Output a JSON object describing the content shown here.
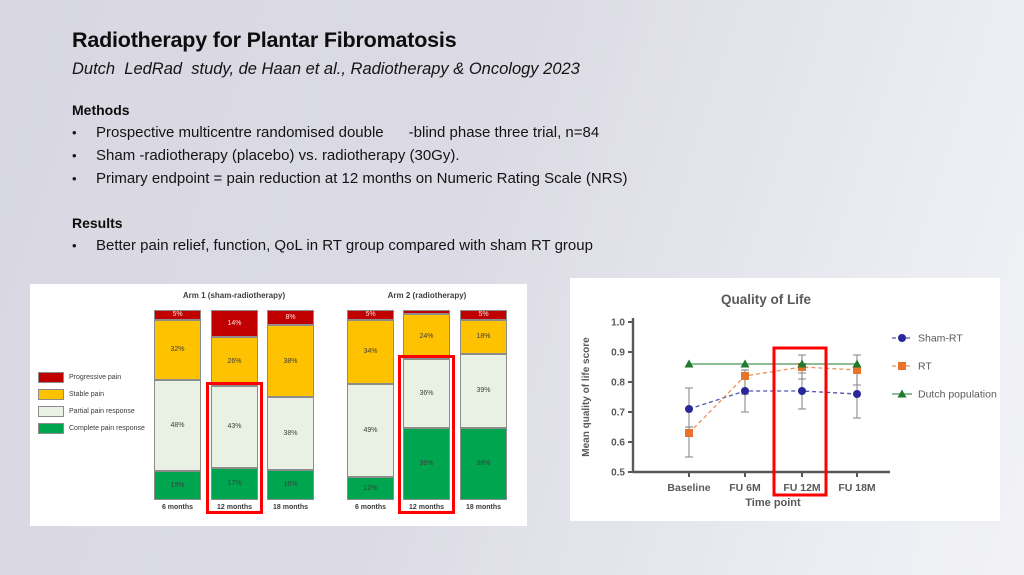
{
  "slide": {
    "title": "Radiotherapy for Plantar Fibromatosis",
    "subtitle": "Dutch  LedRad  study, de Haan et al., Radiotherapy & Oncology 2023",
    "methods": {
      "heading": "Methods",
      "bullets": [
        "Prospective multicentre randomised double      -blind phase three trial, n=84",
        "Sham -radiotherapy (placebo) vs. radiotherapy (30Gy).",
        "Primary endpoint = pain reduction at 12 months on Numeric Rating Scale (NRS)"
      ]
    },
    "results": {
      "heading": "Results",
      "bullets": [
        "Better pain relief, function, QoL in RT group compared with sham RT group"
      ]
    }
  },
  "colors": {
    "background_left": "#d8d7e2",
    "background_right": "#f2f2f6",
    "highlight_red": "#fe0000",
    "progressive_pain": "#c00000",
    "stable_pain": "#fec200",
    "partial_response": "#e9f1e4",
    "complete_response": "#00a54f",
    "sham_rt_blue": "#28289b",
    "rt_orange": "#e8742c",
    "dutch_green": "#1e7a2e",
    "axis_grey": "#58595b"
  },
  "chart_data": [
    {
      "type": "bar",
      "stacked": true,
      "unit": "%",
      "legend": [
        "Progressive pain",
        "Stable pain",
        "Partial pain response",
        "Complete pain response"
      ],
      "segment_colors": [
        "#c00000",
        "#fec200",
        "#e9f1e4",
        "#00a54f"
      ],
      "groups": [
        {
          "title": "Arm 1 (sham-radiotherapy)",
          "categories": [
            "6 months",
            "12 months",
            "18 months"
          ],
          "bars": [
            [
              5,
              32,
              48,
              15
            ],
            [
              14,
              26,
              43,
              17
            ],
            [
              8,
              38,
              38,
              16
            ]
          ],
          "highlighted_category": "12 months"
        },
        {
          "title": "Arm 2 (radiotherapy)",
          "categories": [
            "6 months",
            "12 months",
            "18 months"
          ],
          "bars": [
            [
              5,
              34,
              49,
              12
            ],
            [
              2,
              24,
              36,
              38
            ],
            [
              5,
              18,
              39,
              38
            ]
          ],
          "highlighted_category": "12 months"
        }
      ]
    },
    {
      "type": "line",
      "title": "Quality of Life",
      "xlabel": "Time point",
      "ylabel": "Mean quality of life score",
      "x": [
        "Baseline",
        "FU 6M",
        "FU 12M",
        "FU 18M"
      ],
      "ylim": [
        0.5,
        1.0
      ],
      "yticks": [
        0.5,
        0.6,
        0.7,
        0.8,
        0.9,
        1.0
      ],
      "grid": false,
      "legend_position": "right",
      "highlighted_x": "FU 12M",
      "series": [
        {
          "name": "Sham-RT",
          "marker": "circle",
          "color": "#28289b",
          "dashed": true,
          "values": [
            0.71,
            0.77,
            0.77,
            0.76
          ],
          "err_lo": [
            0.65,
            0.7,
            0.71,
            0.68
          ],
          "err_hi": [
            0.78,
            0.84,
            0.83,
            0.84
          ]
        },
        {
          "name": "RT",
          "marker": "square",
          "color": "#e8742c",
          "dashed": true,
          "values": [
            0.63,
            0.82,
            0.85,
            0.84
          ],
          "err_lo": [
            0.55,
            0.76,
            0.81,
            0.79
          ],
          "err_hi": [
            0.65,
            0.84,
            0.89,
            0.89
          ]
        },
        {
          "name": "Dutch population",
          "marker": "triangle",
          "color": "#1e7a2e",
          "dashed": false,
          "values": [
            0.86,
            0.86,
            0.86,
            0.86
          ]
        }
      ]
    }
  ]
}
